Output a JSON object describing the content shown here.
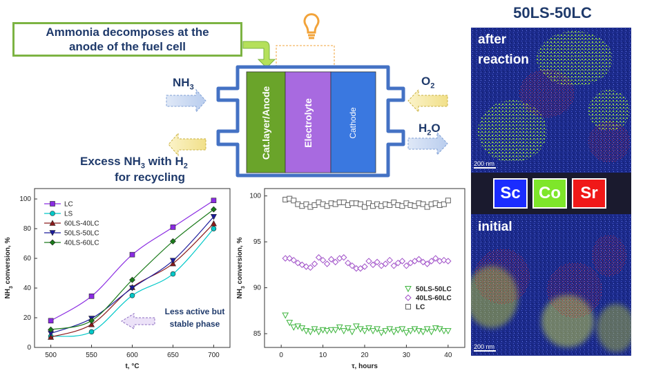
{
  "callout": {
    "text": "Ammonia decomposes at the\nanode of the fuel cell"
  },
  "cell": {
    "anode_label": "Cat.layer/Anode",
    "electrolyte_label": "Electrolyte",
    "cathode_label": "Cathode",
    "colors": {
      "anode": "#6aa42a",
      "electrolyte": "#a86ae0",
      "cathode": "#3a78e0",
      "frame": "#4472c4",
      "lamp": "#f2a33a"
    }
  },
  "flows": {
    "nh3_in": {
      "main": "NH",
      "sub": "3"
    },
    "o2_in": {
      "main": "O",
      "sub": "2"
    },
    "h2o_out": {
      "main": "H",
      "sub": "2",
      "tail": "O"
    },
    "excess": {
      "part1": "Excess NH",
      "sub1": "3",
      "part2": " with  H",
      "sub2": "2",
      "line2": "for recycling"
    }
  },
  "micrograph": {
    "title": "50LS-50LC",
    "after_label_1": "after",
    "after_label_2": "reaction",
    "initial_label": "initial",
    "scale_bar": "200 nm",
    "elements": [
      {
        "symbol": "Sc",
        "color": "#1a2cff"
      },
      {
        "symbol": "Co",
        "color": "#7ee62a"
      },
      {
        "symbol": "Sr",
        "color": "#f01818"
      }
    ]
  },
  "chart_data": [
    {
      "type": "line",
      "xlabel": "t, °C",
      "ylabel": "NH3 conversion, %",
      "x": [
        500,
        550,
        600,
        650,
        700
      ],
      "xlim": [
        480,
        720
      ],
      "ylim": [
        0,
        107
      ],
      "xticks": [
        "500",
        "550",
        "600",
        "650",
        "700"
      ],
      "yticks": [
        "0",
        "20",
        "40",
        "60",
        "80",
        "100"
      ],
      "annotation": {
        "line1": "Less active but",
        "line2": "stable phase"
      },
      "legend": "top-left",
      "series": [
        {
          "name": "LC",
          "color": "#8a2be2",
          "marker": "square",
          "values": [
            18,
            34.5,
            62.5,
            81,
            99
          ]
        },
        {
          "name": "LS",
          "color": "#00c8c8",
          "marker": "circle",
          "values": [
            7.5,
            10.5,
            35,
            49.5,
            80
          ]
        },
        {
          "name": "60LS-40LC",
          "color": "#8b1a1a",
          "marker": "triangle-up",
          "values": [
            7,
            15.5,
            40.5,
            56.5,
            83.5
          ]
        },
        {
          "name": "50LS-50LC",
          "color": "#1c1c9c",
          "marker": "triangle-down",
          "values": [
            9.5,
            19.5,
            40,
            58.5,
            88
          ]
        },
        {
          "name": "40LS-60LC",
          "color": "#1a7a1a",
          "marker": "diamond",
          "values": [
            12,
            18,
            45.5,
            71.5,
            93
          ]
        }
      ]
    },
    {
      "type": "scatter",
      "xlabel": "τ, hours",
      "ylabel": "NH3 conversion, %",
      "xlim": [
        -4,
        44
      ],
      "ylim": [
        83.5,
        100.8
      ],
      "xticks": [
        "0",
        "10",
        "20",
        "30",
        "40"
      ],
      "yticks": [
        "85",
        "90",
        "95",
        "100"
      ],
      "legend": "center-right",
      "series": [
        {
          "name": "50LS-50LC",
          "color": "#3cb43c",
          "marker": "triangle-down",
          "x": [
            1,
            2,
            3,
            4,
            5,
            6,
            7,
            8,
            9,
            10,
            11,
            12,
            13,
            14,
            15,
            16,
            17,
            18,
            19,
            20,
            21,
            22,
            23,
            24,
            25,
            26,
            27,
            28,
            29,
            30,
            31,
            32,
            33,
            34,
            35,
            36,
            37,
            38,
            39,
            40
          ],
          "y": [
            87,
            86.2,
            85.7,
            85.8,
            85.6,
            85.3,
            85.2,
            85.5,
            85.2,
            85.4,
            85.3,
            85.4,
            85.4,
            85.7,
            85.3,
            85.6,
            85.2,
            85.8,
            85.5,
            85.3,
            85.6,
            85.3,
            85.5,
            85.1,
            85.3,
            85.5,
            85.2,
            85.4,
            85.5,
            85.1,
            85.3,
            85.5,
            85.3,
            85.2,
            85.5,
            85.2,
            85.6,
            85.5,
            85.3,
            85.3
          ]
        },
        {
          "name": "40LS-60LC",
          "color": "#a050c8",
          "marker": "diamond",
          "x": [
            1,
            2,
            3,
            4,
            5,
            6,
            7,
            8,
            9,
            10,
            11,
            12,
            13,
            14,
            15,
            16,
            17,
            18,
            19,
            20,
            21,
            22,
            23,
            24,
            25,
            26,
            27,
            28,
            29,
            30,
            31,
            32,
            33,
            34,
            35,
            36,
            37,
            38,
            39,
            40
          ],
          "y": [
            93.2,
            93.2,
            93,
            92.7,
            92.5,
            92.3,
            92.2,
            92.6,
            93.3,
            93,
            92.6,
            93.1,
            92.8,
            93.2,
            93.3,
            92.7,
            92.4,
            92.1,
            92.1,
            92.3,
            92.9,
            92.5,
            92.8,
            92.4,
            92.6,
            93,
            92.4,
            92.7,
            92.9,
            92.4,
            92.7,
            92.9,
            93.1,
            92.8,
            92.6,
            92.9,
            93.2,
            92.9,
            93,
            92.9
          ]
        },
        {
          "name": "LC",
          "color": "#606060",
          "marker": "square",
          "x": [
            1,
            2,
            3,
            4,
            5,
            6,
            7,
            8,
            9,
            10,
            11,
            12,
            13,
            14,
            15,
            16,
            17,
            18,
            19,
            20,
            21,
            22,
            23,
            24,
            25,
            26,
            27,
            28,
            29,
            30,
            31,
            32,
            33,
            34,
            35,
            36,
            37,
            38,
            39,
            40
          ],
          "y": [
            99.6,
            99.7,
            99.5,
            99.1,
            98.9,
            99.1,
            98.8,
            99,
            99.3,
            99.1,
            98.9,
            99.2,
            99.1,
            99.3,
            99.3,
            99,
            99.2,
            99.2,
            99.1,
            98.8,
            99.2,
            98.9,
            99.1,
            98.9,
            99.1,
            99,
            99.3,
            99,
            98.9,
            99.2,
            99,
            98.9,
            99.2,
            99.1,
            98.8,
            99.1,
            99.2,
            99,
            99.1,
            99.5
          ]
        }
      ]
    }
  ]
}
